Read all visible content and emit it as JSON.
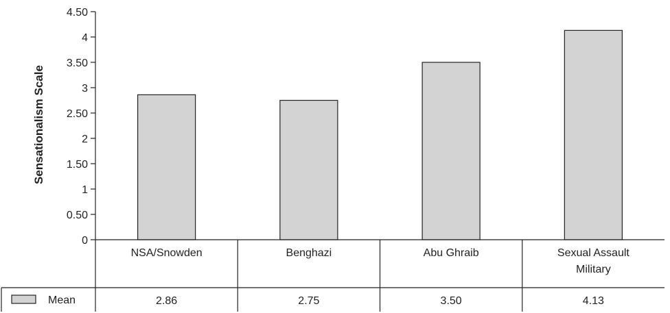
{
  "chart_data": {
    "type": "bar",
    "categories": [
      "NSA/Snowden",
      "Benghazi",
      "Abu Ghraib",
      "Sexual Assault Military"
    ],
    "category_lines": [
      [
        "NSA/Snowden"
      ],
      [
        "Benghazi"
      ],
      [
        "Abu Ghraib"
      ],
      [
        "Sexual Assault",
        "Military"
      ]
    ],
    "series": [
      {
        "name": "Mean",
        "values": [
          2.86,
          2.75,
          3.5,
          4.13
        ]
      }
    ],
    "value_labels": [
      "2.86",
      "2.75",
      "3.50",
      "4.13"
    ],
    "ylabel": "Sensationalism Scale",
    "ylim": [
      0,
      4.5
    ],
    "y_ticks": [
      0,
      0.5,
      1,
      1.5,
      2,
      2.5,
      3,
      3.5,
      4,
      4.5
    ],
    "y_tick_labels": [
      "0",
      "0.50",
      "1",
      "1.50",
      "2",
      "2.50",
      "3",
      "3.50",
      "4",
      "4.50"
    ],
    "grid": false,
    "legend_placement": "bottom-left data table",
    "bar_color": "#d3d3d3",
    "line_color": "#222222"
  }
}
